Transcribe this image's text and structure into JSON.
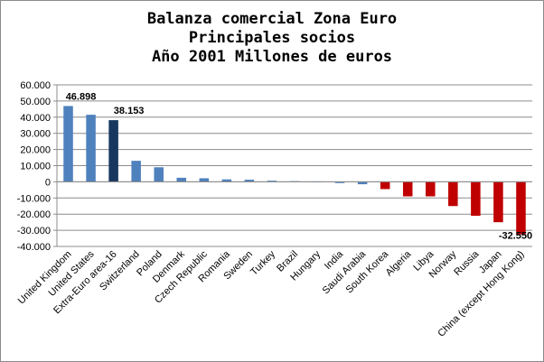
{
  "chart_data": {
    "type": "bar",
    "title": [
      "Balanza comercial Zona Euro",
      "Principales socios",
      "Año 2001 Millones de euros"
    ],
    "xlabel": "",
    "ylabel": "",
    "ylim": [
      -40000,
      60000
    ],
    "yticks": [
      60000,
      50000,
      40000,
      30000,
      20000,
      10000,
      0,
      -10000,
      -20000,
      -30000,
      -40000
    ],
    "ytick_labels": [
      "60.000",
      "50.000",
      "40.000",
      "30.000",
      "20.000",
      "10.000",
      "0",
      "-10.000",
      "-20.000",
      "-30.000",
      "-40.000"
    ],
    "grid": true,
    "legend": "none",
    "categories": [
      "United Kingdom",
      "United States",
      "Extra-Euro area-16",
      "Switzerland",
      "Poland",
      "Denmark",
      "Czech Republic",
      "Romania",
      "Sweden",
      "Turkey",
      "Brazil",
      "Hungary",
      "India",
      "Saudi Arabia",
      "South Korea",
      "Algeria",
      "Libya",
      "Norway",
      "Russia",
      "Japan",
      "China (except Hong Kong)"
    ],
    "values": [
      46898,
      41500,
      38153,
      13000,
      9000,
      2500,
      2200,
      1500,
      1300,
      700,
      400,
      100,
      -800,
      -1500,
      -4500,
      -9000,
      -9000,
      -15000,
      -21000,
      -25000,
      -32550
    ],
    "colors": [
      "#4f81bd",
      "#4f81bd",
      "#17375e",
      "#4f81bd",
      "#4f81bd",
      "#4f81bd",
      "#4f81bd",
      "#4f81bd",
      "#4f81bd",
      "#4f81bd",
      "#4f81bd",
      "#4f81bd",
      "#4f81bd",
      "#4f81bd",
      "#c00000",
      "#c00000",
      "#c00000",
      "#c00000",
      "#c00000",
      "#c00000",
      "#c00000"
    ],
    "data_labels": [
      {
        "index": 0,
        "text": "46.898"
      },
      {
        "index": 2,
        "text": "38.153"
      },
      {
        "index": 20,
        "text": "-32.550"
      }
    ]
  }
}
